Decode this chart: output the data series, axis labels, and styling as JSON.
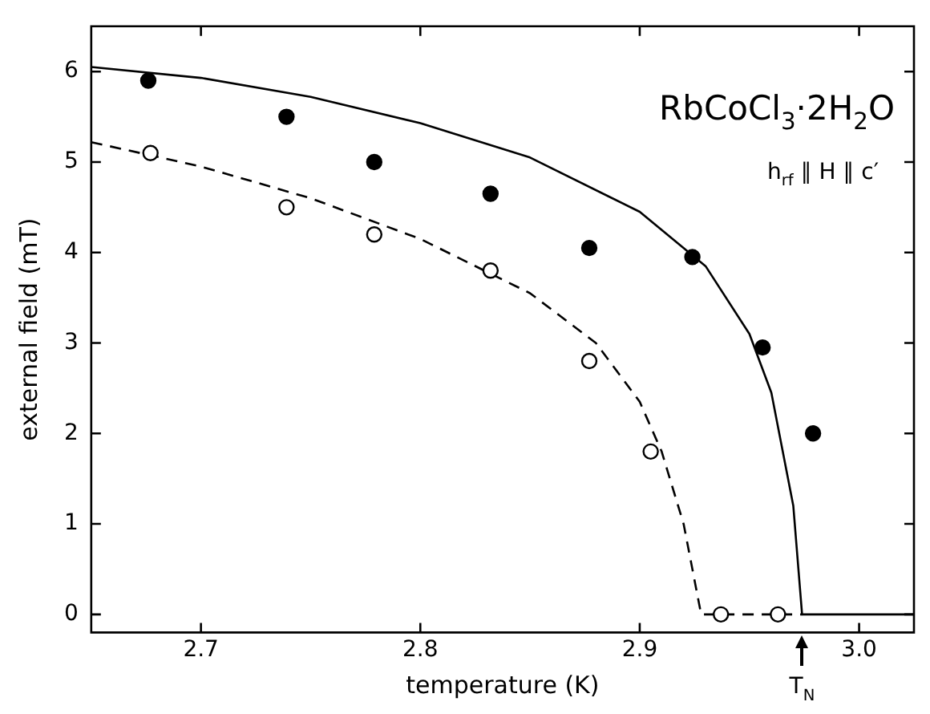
{
  "chart_data": {
    "type": "scatter",
    "xlabel": "temperature (K)",
    "ylabel": "external field (mT)",
    "xlim": [
      2.65,
      3.025
    ],
    "ylim": [
      -0.2,
      6.5
    ],
    "xticks": [
      2.7,
      2.8,
      2.9,
      {
        "value": 3,
        "label": "3.0"
      }
    ],
    "yticks": [
      0,
      1,
      2,
      3,
      4,
      5,
      6
    ],
    "grid": false,
    "legend": false,
    "annotations": [
      "RbCoCl$_{3}$·2H$_{2}$O",
      "h$_{rf}$ ∥ H ∥ c′",
      "T$_{N}$"
    ],
    "series": [
      {
        "marker": "circle",
        "color": "#000000",
        "x": [
          2.676,
          2.739,
          2.779,
          2.832,
          2.877,
          2.924,
          2.956,
          2.979
        ],
        "values": [
          5.9,
          5.5,
          5.0,
          4.65,
          4.05,
          3.95,
          2.95,
          2.0
        ]
      },
      {
        "marker": "circle",
        "color": "#000000",
        "x": [
          2.677,
          2.739,
          2.779,
          2.832,
          2.877,
          2.905,
          2.937,
          2.963
        ],
        "values": [
          5.1,
          4.5,
          4.2,
          3.8,
          2.8,
          1.8,
          0,
          0
        ]
      },
      {
        "type": "line",
        "line_style": "solid",
        "marker": "none",
        "color": "#000000",
        "x": [
          2.65,
          2.7,
          2.75,
          2.8,
          2.85,
          2.9,
          2.93,
          2.95,
          2.96,
          2.97,
          2.974,
          3.025
        ],
        "values": [
          6.05,
          5.93,
          5.72,
          5.43,
          5.05,
          4.45,
          3.85,
          3.1,
          2.45,
          1.2,
          0,
          0
        ]
      },
      {
        "type": "line",
        "line_style": "dashed",
        "marker": "none",
        "color": "#000000",
        "x": [
          2.65,
          2.7,
          2.75,
          2.8,
          2.85,
          2.88,
          2.9,
          2.91,
          2.92,
          2.928,
          2.974
        ],
        "values": [
          5.22,
          4.95,
          4.6,
          4.15,
          3.55,
          3.0,
          2.35,
          1.8,
          1.0,
          0,
          0
        ]
      }
    ]
  }
}
